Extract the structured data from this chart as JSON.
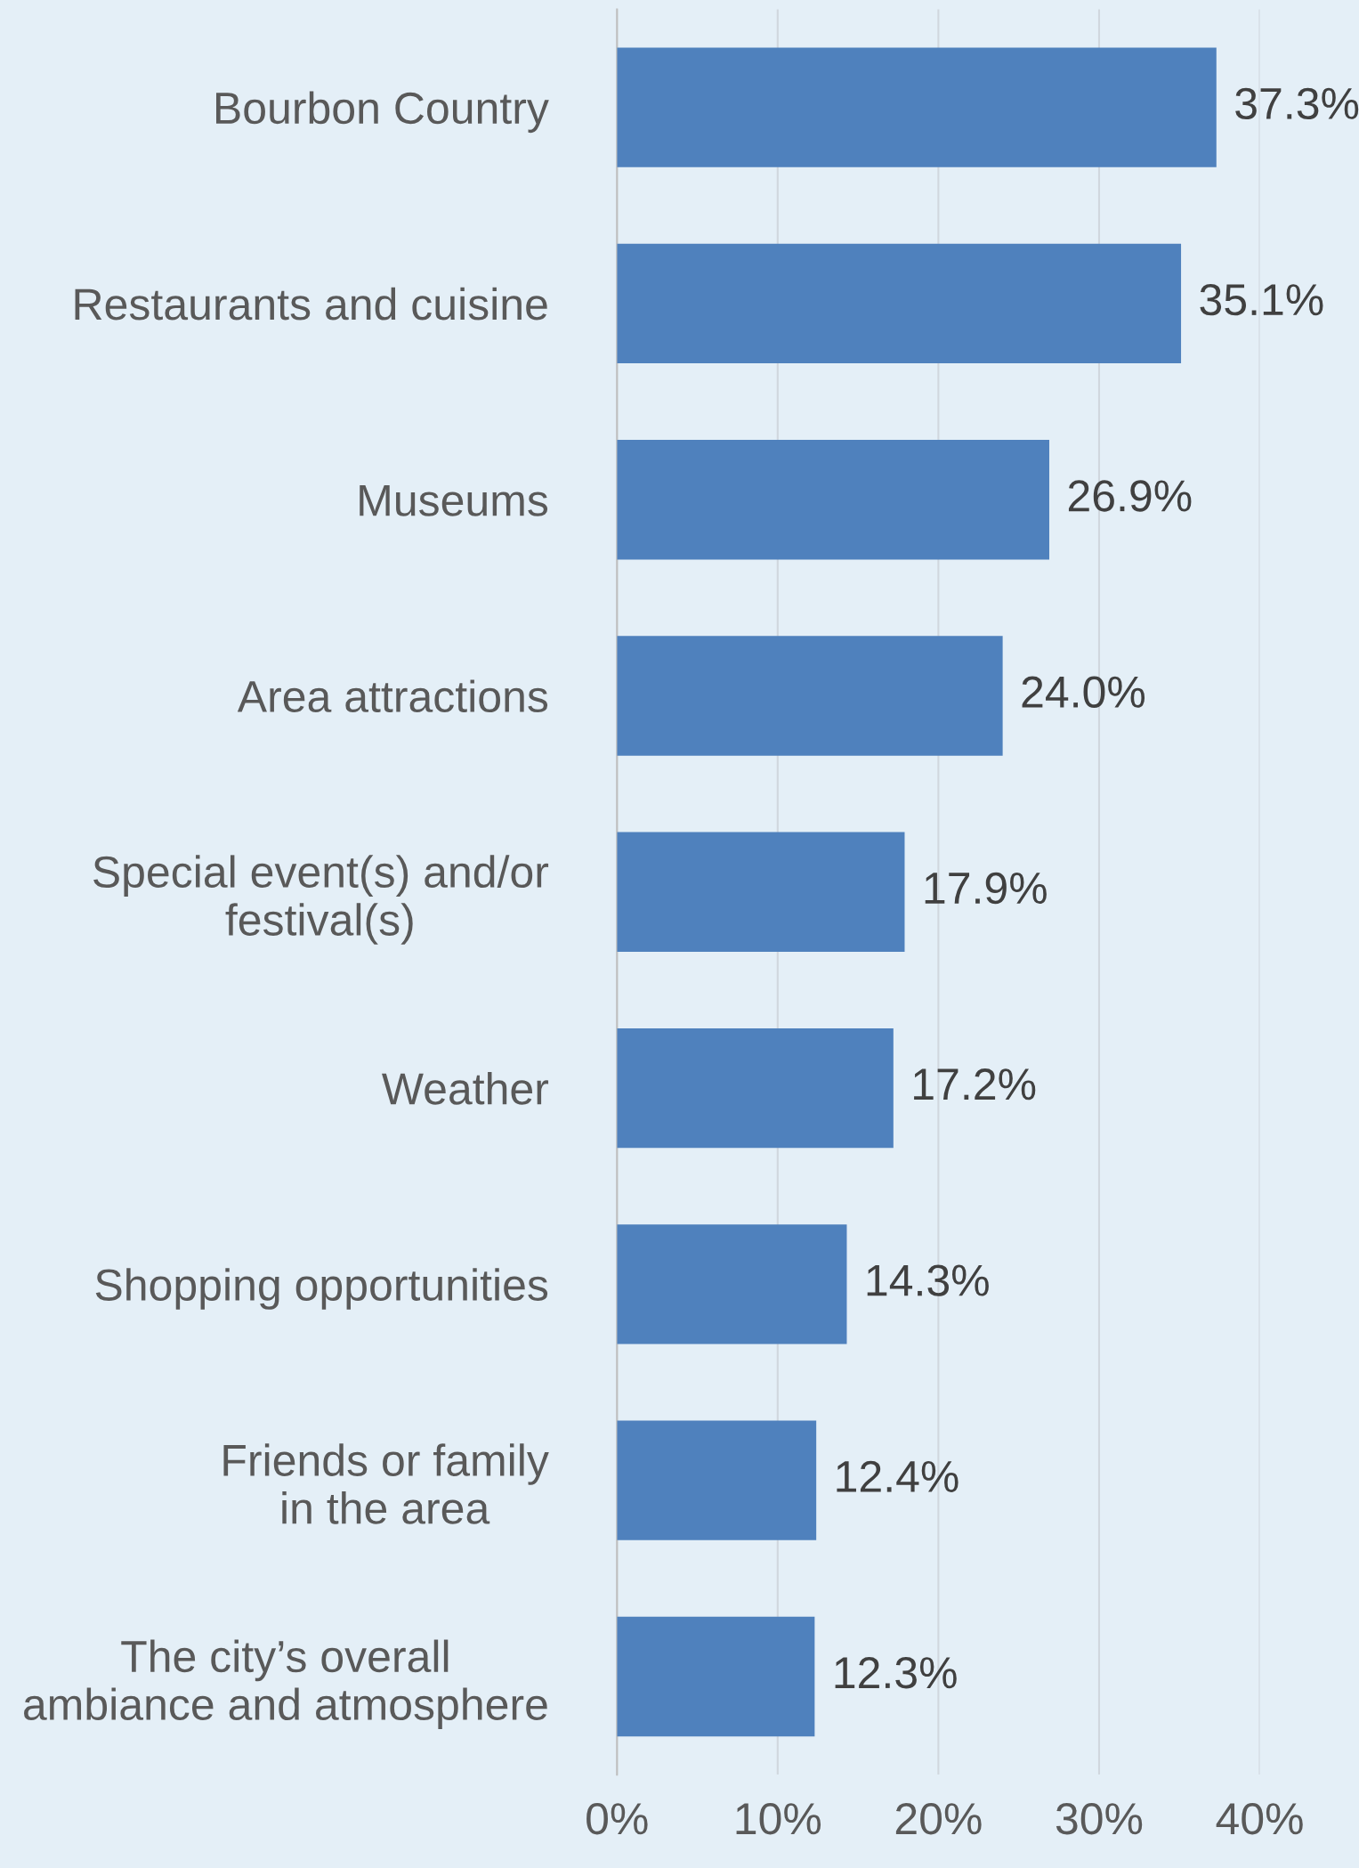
{
  "chart_data": {
    "type": "bar",
    "orientation": "horizontal",
    "categories": [
      "Bourbon Country",
      "Restaurants and cuisine",
      "Museums",
      "Area attractions",
      "Special event(s) and/or\nfestival(s)",
      "Weather",
      "Shopping opportunities",
      "Friends or family\nin the area",
      "The city’s overall\nambiance and atmosphere"
    ],
    "values": [
      37.3,
      35.1,
      26.9,
      24.0,
      17.9,
      17.2,
      14.3,
      12.4,
      12.3
    ],
    "value_labels": [
      "37.3%",
      "35.1%",
      "26.9%",
      "24.0%",
      "17.9%",
      "17.2%",
      "14.3%",
      "12.4%",
      "12.3%"
    ],
    "color": "#4f81bd",
    "xlim": [
      0,
      40
    ],
    "xticks": [
      {
        "value": 0,
        "label": "0%"
      },
      {
        "value": 10,
        "label": "10%"
      },
      {
        "value": 20,
        "label": "20%"
      },
      {
        "value": 30,
        "label": "30%"
      },
      {
        "value": 40,
        "label": "40%"
      }
    ],
    "grid": "x",
    "legend": false
  }
}
